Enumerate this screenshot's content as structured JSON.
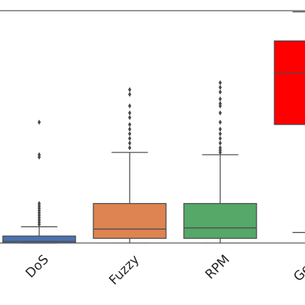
{
  "chart_data": {
    "type": "box",
    "categories": [
      "DoS",
      "Fuzzy",
      "RPM",
      "Gear"
    ],
    "ylim": [
      0,
      1
    ],
    "grid": false,
    "colors": [
      "#4c72b0",
      "#dd8452",
      "#55a868",
      "#ff0000"
    ],
    "boxes": [
      {
        "category": "DoS",
        "whisker_low": 0.0,
        "q1": 0.0,
        "median": 0.007,
        "q3": 0.03,
        "whisker_high": 0.07,
        "outliers": [
          0.08,
          0.09,
          0.1,
          0.11,
          0.12,
          0.13,
          0.14,
          0.15,
          0.16,
          0.17,
          0.37,
          0.38,
          0.52
        ]
      },
      {
        "category": "Fuzzy",
        "whisker_low": 0.0,
        "q1": 0.02,
        "median": 0.06,
        "q3": 0.17,
        "whisker_high": 0.39,
        "outliers": [
          0.41,
          0.43,
          0.45,
          0.47,
          0.49,
          0.51,
          0.54,
          0.56,
          0.59,
          0.64,
          0.66
        ]
      },
      {
        "category": "RPM",
        "whisker_low": 0.0,
        "q1": 0.02,
        "median": 0.065,
        "q3": 0.17,
        "whisker_high": 0.38,
        "outliers": [
          0.39,
          0.4,
          0.41,
          0.43,
          0.45,
          0.47,
          0.49,
          0.52,
          0.56,
          0.59,
          0.6,
          0.62,
          0.65,
          0.67,
          0.69
        ]
      },
      {
        "category": "Gear",
        "whisker_low": 0.045,
        "q1": 0.51,
        "median": 0.73,
        "q3": 0.87,
        "whisker_high": 0.995,
        "outliers": []
      }
    ]
  }
}
